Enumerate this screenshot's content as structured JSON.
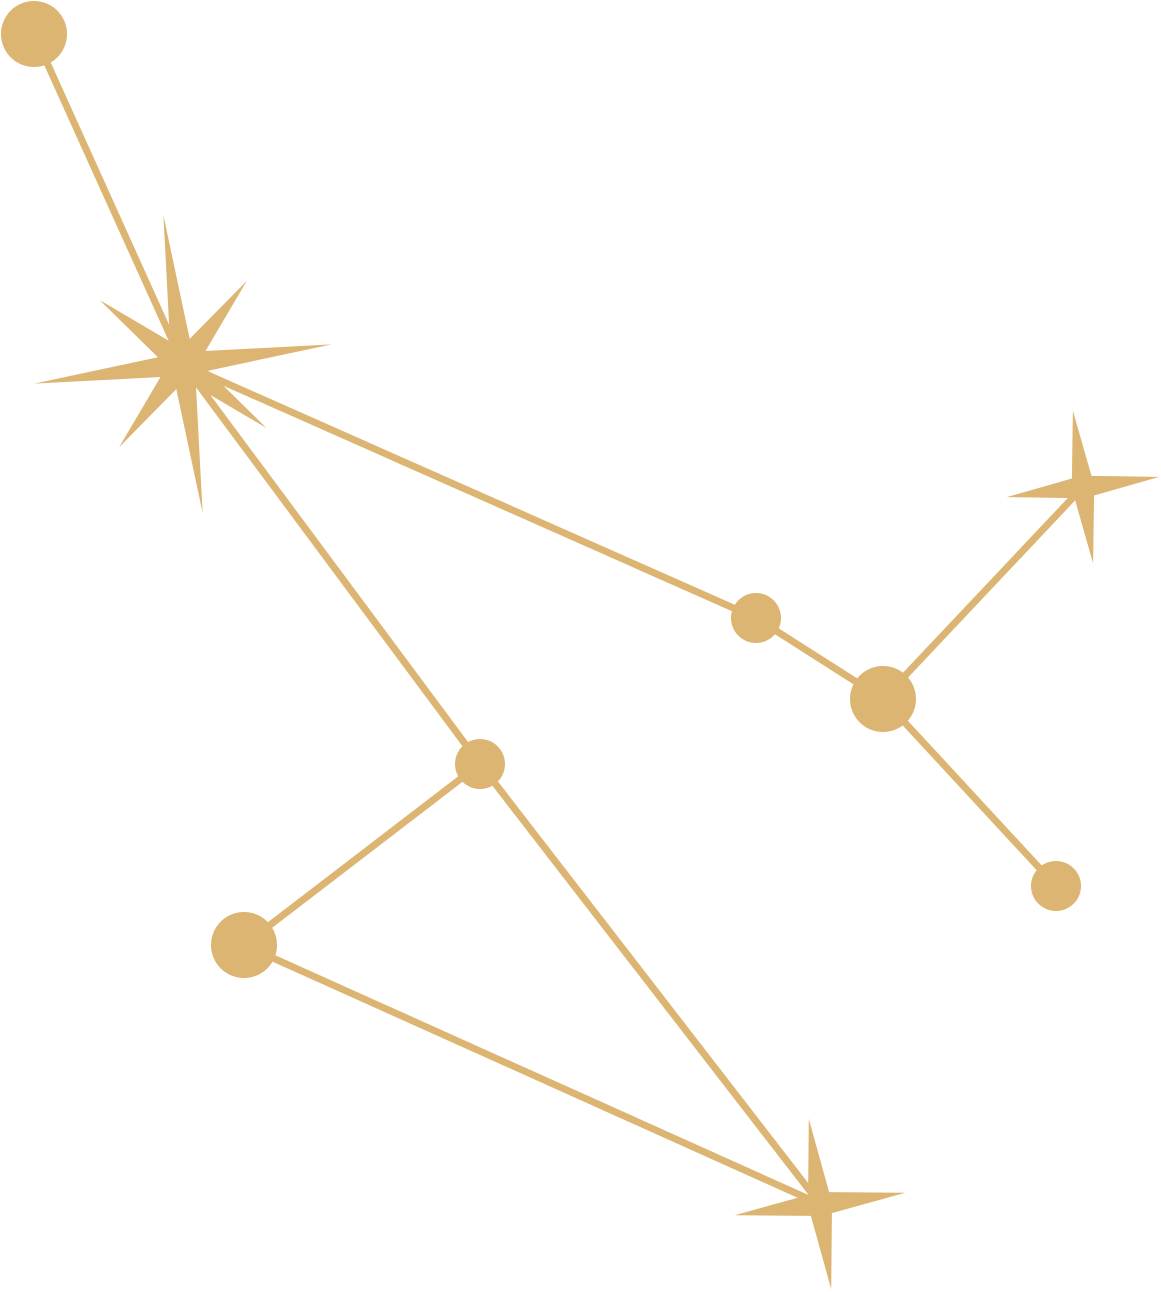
{
  "diagram": {
    "type": "constellation",
    "colors": {
      "gold": "#dcb572",
      "background": "#ffffff"
    },
    "stars": [
      {
        "id": "s1",
        "kind": "dot",
        "magnitude": "medium"
      },
      {
        "id": "s2",
        "kind": "eight-point-star",
        "magnitude": "large"
      },
      {
        "id": "s3",
        "kind": "dot",
        "magnitude": "small"
      },
      {
        "id": "s4",
        "kind": "dot",
        "magnitude": "medium"
      },
      {
        "id": "s5",
        "kind": "four-point-star",
        "magnitude": "medium"
      },
      {
        "id": "s6",
        "kind": "dot",
        "magnitude": "small"
      },
      {
        "id": "s7",
        "kind": "dot",
        "magnitude": "small"
      },
      {
        "id": "s8",
        "kind": "dot",
        "magnitude": "medium"
      },
      {
        "id": "s9",
        "kind": "four-point-star",
        "magnitude": "medium"
      }
    ],
    "links": [
      [
        "s1",
        "s2"
      ],
      [
        "s2",
        "s3"
      ],
      [
        "s3",
        "s4"
      ],
      [
        "s4",
        "s5"
      ],
      [
        "s4",
        "s6"
      ],
      [
        "s2",
        "s7"
      ],
      [
        "s7",
        "s9"
      ],
      [
        "s7",
        "s8"
      ],
      [
        "s8",
        "s9"
      ]
    ]
  }
}
